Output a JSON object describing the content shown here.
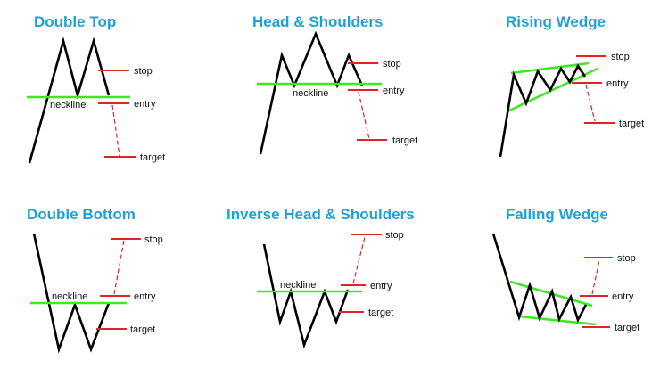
{
  "colors": {
    "title": "#1ea2d6",
    "price_line": "#000000",
    "neckline": "#3cea1e",
    "level": "#e0242a",
    "projection": "#e0242a",
    "background": "#ffffff"
  },
  "labels": {
    "stop": "stop",
    "entry": "entry",
    "target": "target",
    "neckline": "neckline"
  },
  "patterns": [
    {
      "id": "double-top",
      "title": "Double Top",
      "has_neckline_label": true
    },
    {
      "id": "head-and-shoulders",
      "title": "Head & Shoulders",
      "has_neckline_label": true
    },
    {
      "id": "rising-wedge",
      "title": "Rising Wedge",
      "has_neckline_label": false
    },
    {
      "id": "double-bottom",
      "title": "Double Bottom",
      "has_neckline_label": true
    },
    {
      "id": "inverse-head-and-shoulders",
      "title": "Inverse Head & Shoulders",
      "has_neckline_label": true
    },
    {
      "id": "falling-wedge",
      "title": "Falling Wedge",
      "has_neckline_label": false
    }
  ]
}
